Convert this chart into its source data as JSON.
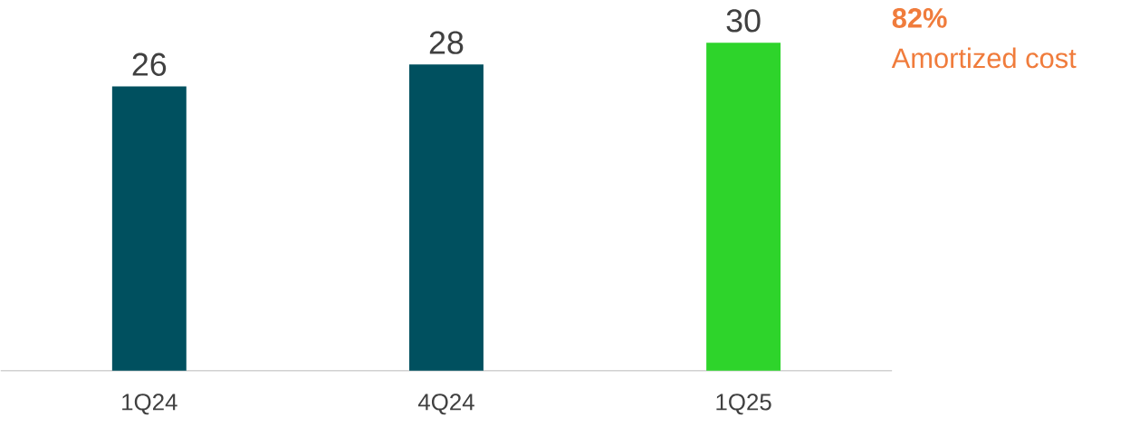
{
  "chart_data": {
    "type": "bar",
    "categories": [
      "1Q24",
      "4Q24",
      "1Q25"
    ],
    "values": [
      26,
      28,
      30
    ],
    "colors": [
      "#00505f",
      "#00505f",
      "#2ed42b"
    ],
    "data_labels": true,
    "annotations": [
      "82%",
      "Amortized cost"
    ]
  }
}
